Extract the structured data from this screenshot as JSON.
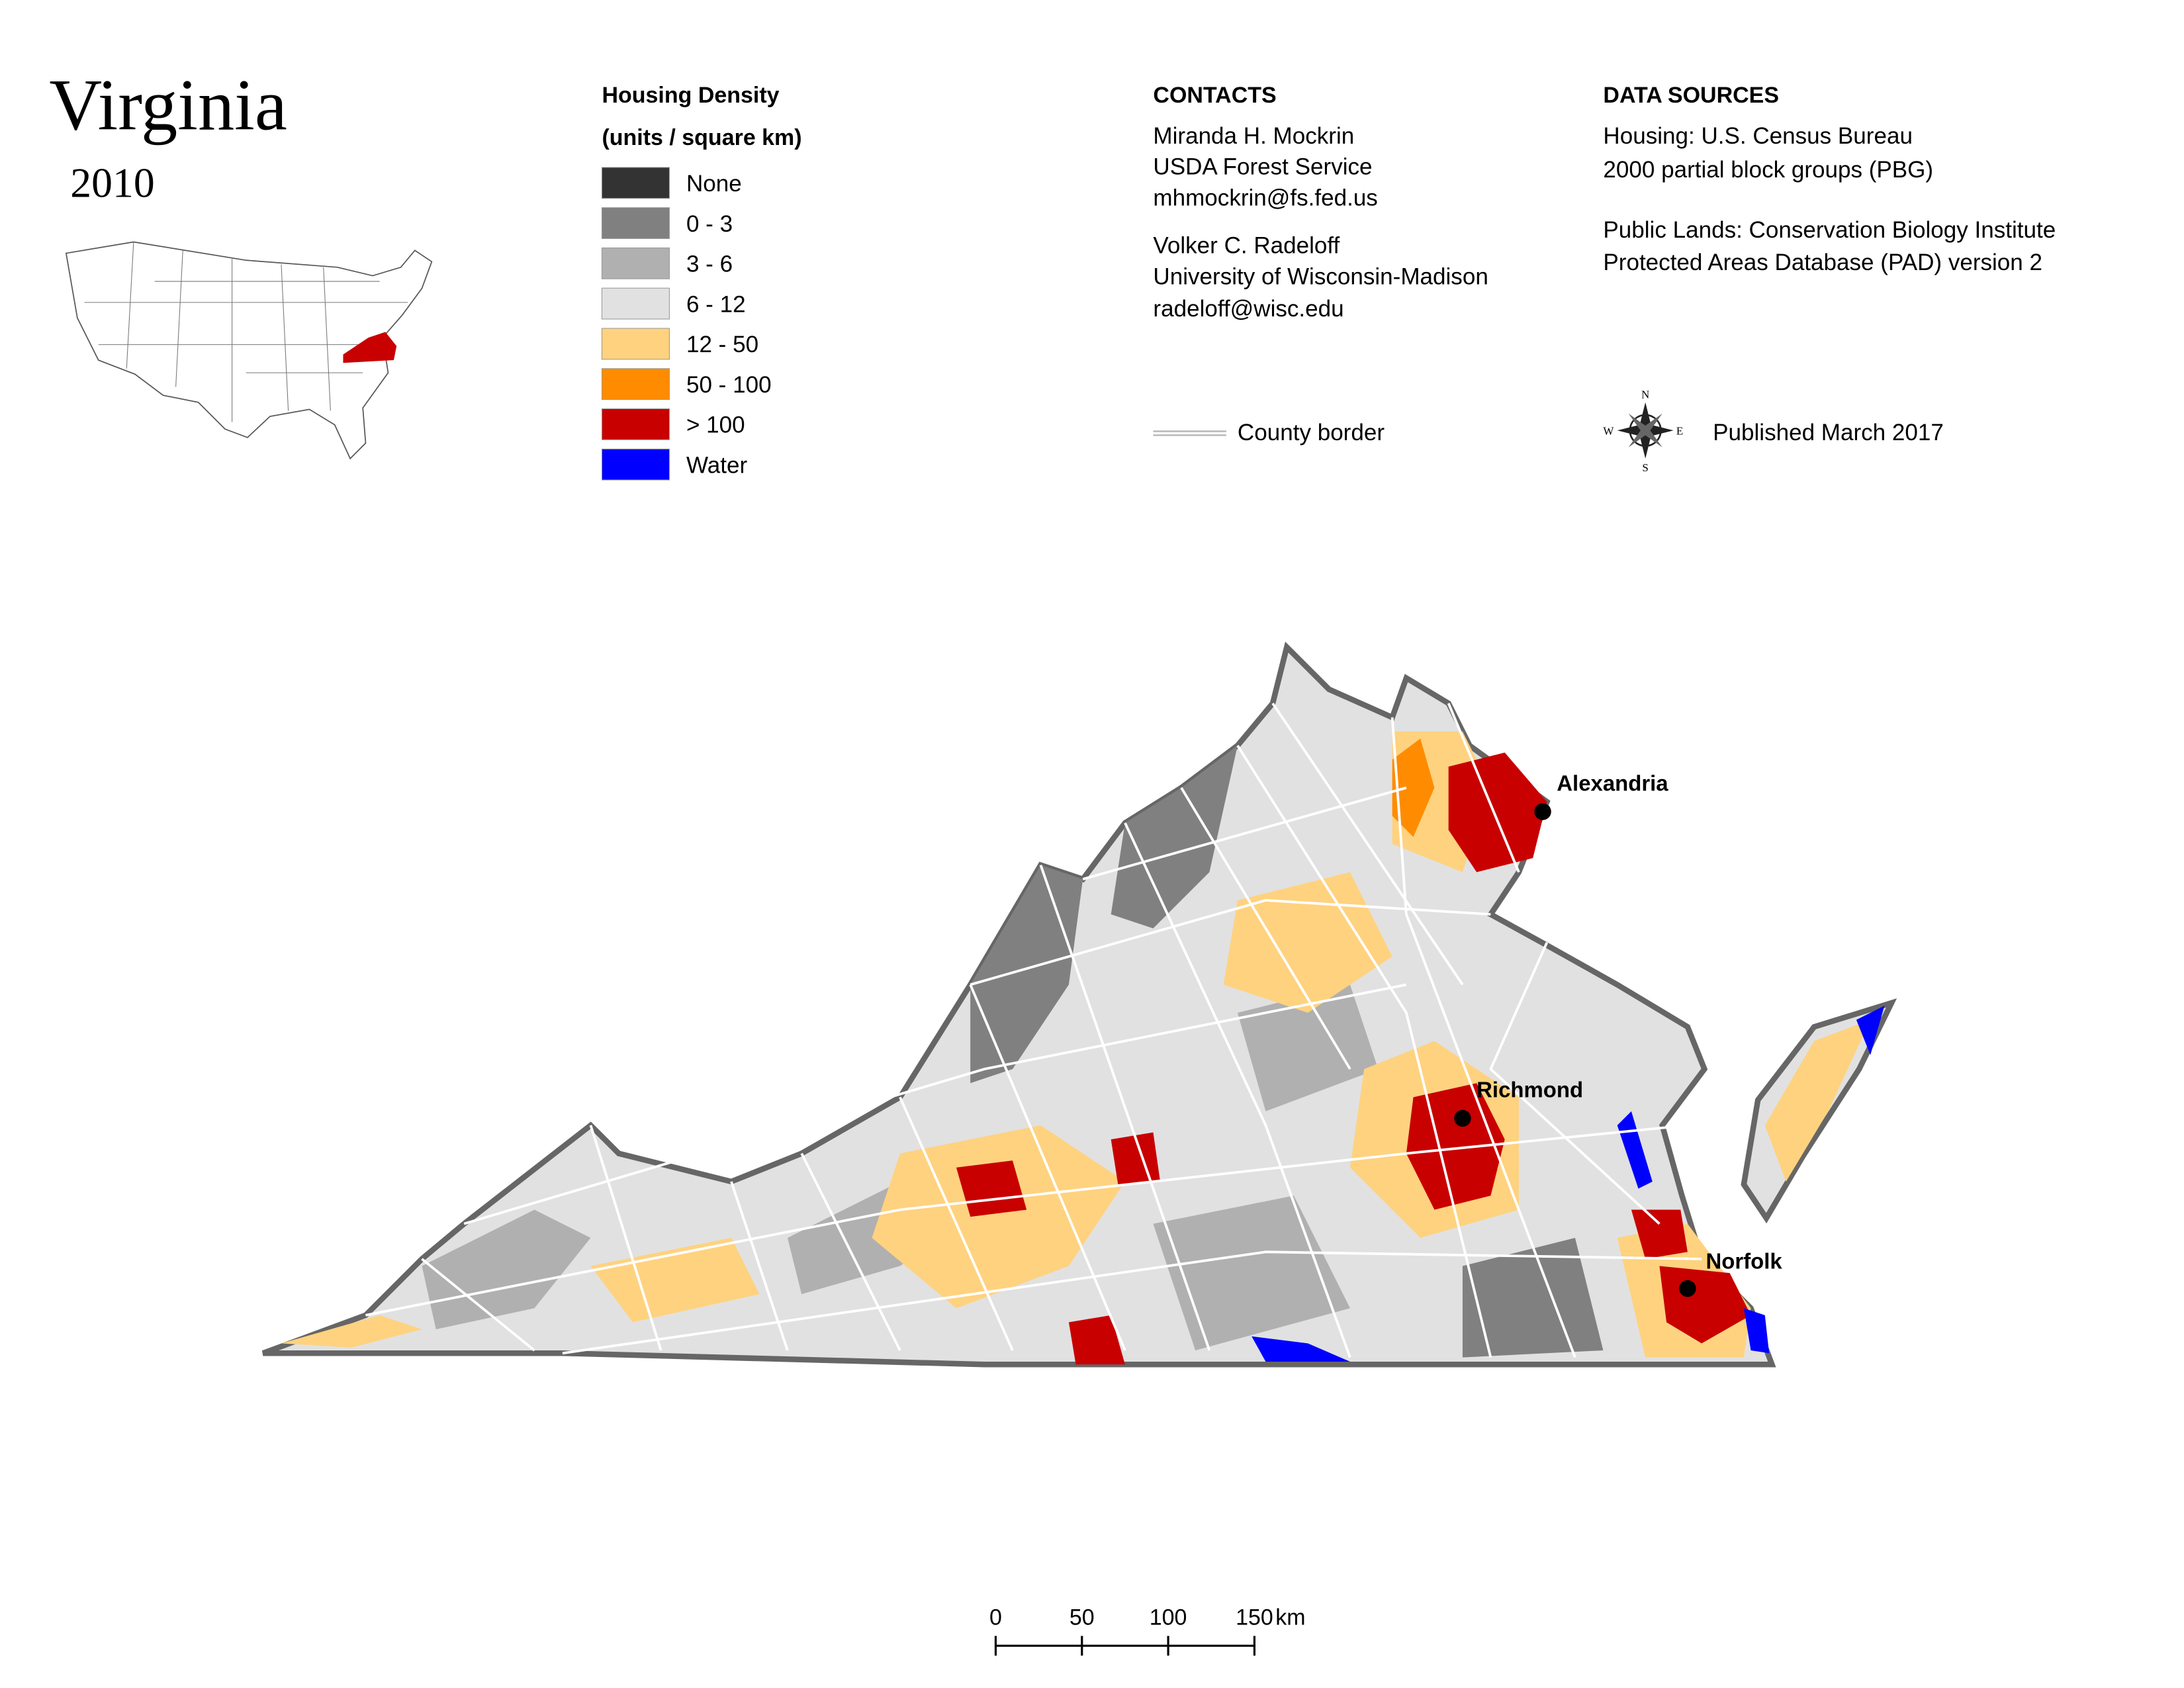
{
  "header": {
    "title": "Virginia",
    "year": "2010"
  },
  "legend": {
    "title": [
      "Housing Density",
      "(units / square km)"
    ],
    "items": [
      {
        "label": "None",
        "color": "#333333"
      },
      {
        "label": "0 - 3",
        "color": "#808080"
      },
      {
        "label": "3 - 6",
        "color": "#b0b0b0"
      },
      {
        "label": "6 - 12",
        "color": "#e1e1e1"
      },
      {
        "label": "12 - 50",
        "color": "#ffd27f"
      },
      {
        "label": "50 - 100",
        "color": "#ff8c00"
      },
      {
        "label": "> 100",
        "color": "#c80000"
      },
      {
        "label": "Water",
        "color": "#0000ff"
      }
    ]
  },
  "contacts": {
    "heading": "CONTACTS",
    "people": [
      [
        "Miranda H. Mockrin",
        "USDA Forest Service",
        "mhmockrin@fs.fed.us"
      ],
      [
        "Volker C. Radeloff",
        "University of Wisconsin-Madison",
        "radeloff@wisc.edu"
      ]
    ]
  },
  "data_sources": {
    "heading": "DATA SOURCES",
    "groups": [
      [
        "Housing: U.S. Census Bureau",
        "2000 partial block groups (PBG)"
      ],
      [
        "Public Lands: Conservation Biology Institute",
        "Protected Areas Database (PAD) version 2"
      ]
    ]
  },
  "county_border": "County border",
  "published": "Published March 2017",
  "compass": {
    "n": "N",
    "e": "E",
    "s": "S",
    "w": "W"
  },
  "cities": [
    "Alexandria",
    "Richmond",
    "Norfolk"
  ],
  "scale_bar": {
    "ticks": [
      0,
      50,
      100,
      150
    ],
    "unit": "km"
  }
}
